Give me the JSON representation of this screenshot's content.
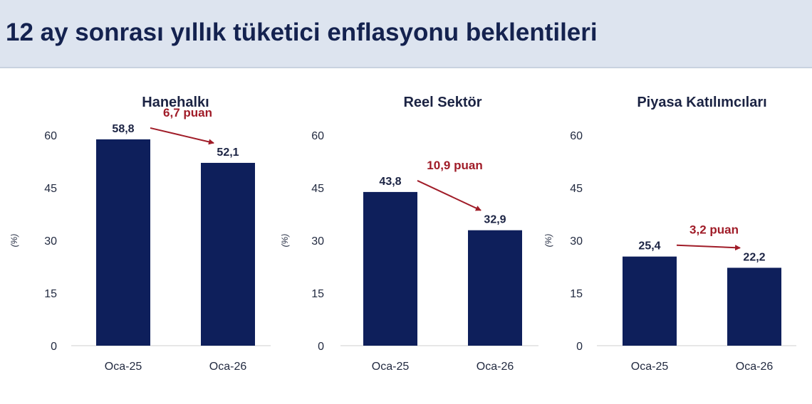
{
  "page": {
    "title": "12 ay sonrası yıllık tüketici enflasyonu beklentileri"
  },
  "colors": {
    "bar": "#0e1f5b",
    "change": "#a01c28",
    "axis_text": "#222a40",
    "label_text": "#1b2343"
  },
  "chart_data": [
    {
      "type": "bar",
      "title": "Hanehalkı",
      "ylabel": "(%)",
      "categories": [
        "Oca-25",
        "Oca-26"
      ],
      "values": [
        58.8,
        52.1
      ],
      "value_labels": [
        "58,8",
        "52,1"
      ],
      "yticks": [
        0,
        15,
        30,
        45,
        60
      ],
      "ylim": [
        0,
        60
      ],
      "grid": false,
      "annotation": "6,7 puan"
    },
    {
      "type": "bar",
      "title": "Reel Sektör",
      "ylabel": "(%)",
      "categories": [
        "Oca-25",
        "Oca-26"
      ],
      "values": [
        43.8,
        32.9
      ],
      "value_labels": [
        "43,8",
        "32,9"
      ],
      "yticks": [
        0,
        15,
        30,
        45,
        60
      ],
      "ylim": [
        0,
        60
      ],
      "grid": false,
      "annotation": "10,9 puan"
    },
    {
      "type": "bar",
      "title": "Piyasa Katılımcıları",
      "ylabel": "(%)",
      "categories": [
        "Oca-25",
        "Oca-26"
      ],
      "values": [
        25.4,
        22.2
      ],
      "value_labels": [
        "25,4",
        "22,2"
      ],
      "yticks": [
        0,
        15,
        30,
        45,
        60
      ],
      "ylim": [
        0,
        60
      ],
      "grid": false,
      "annotation": "3,2 puan"
    }
  ]
}
